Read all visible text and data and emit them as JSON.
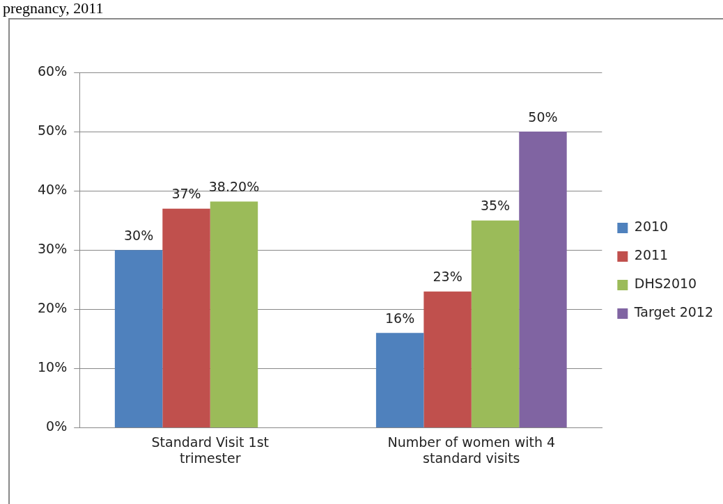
{
  "chart_data": {
    "type": "bar",
    "title": "pregnancy, 2011",
    "categories": [
      "Standard Visit 1st trimester",
      "Number of women with 4 standard visits"
    ],
    "series": [
      {
        "name": "2010",
        "color": "#4f81bd",
        "values": [
          30,
          16
        ],
        "value_labels": [
          "30%",
          "16%"
        ]
      },
      {
        "name": "2011",
        "color": "#c0504d",
        "values": [
          37,
          23
        ],
        "value_labels": [
          "37%",
          "23%"
        ]
      },
      {
        "name": "DHS2010",
        "color": "#9bbb59",
        "values": [
          38.2,
          35
        ],
        "value_labels": [
          "38.20%",
          "35%"
        ]
      },
      {
        "name": "Target 2012",
        "color": "#8064a2",
        "values": [
          null,
          50
        ],
        "value_labels": [
          null,
          "50%"
        ]
      }
    ],
    "ylim": [
      0,
      60
    ],
    "yticks": [
      {
        "value": 0,
        "label": "0%"
      },
      {
        "value": 10,
        "label": "10%"
      },
      {
        "value": 20,
        "label": "20%"
      },
      {
        "value": 30,
        "label": "30%"
      },
      {
        "value": 40,
        "label": "40%"
      },
      {
        "value": 50,
        "label": "50%"
      },
      {
        "value": 60,
        "label": "60%"
      }
    ],
    "grid": "y",
    "legend": "right"
  }
}
